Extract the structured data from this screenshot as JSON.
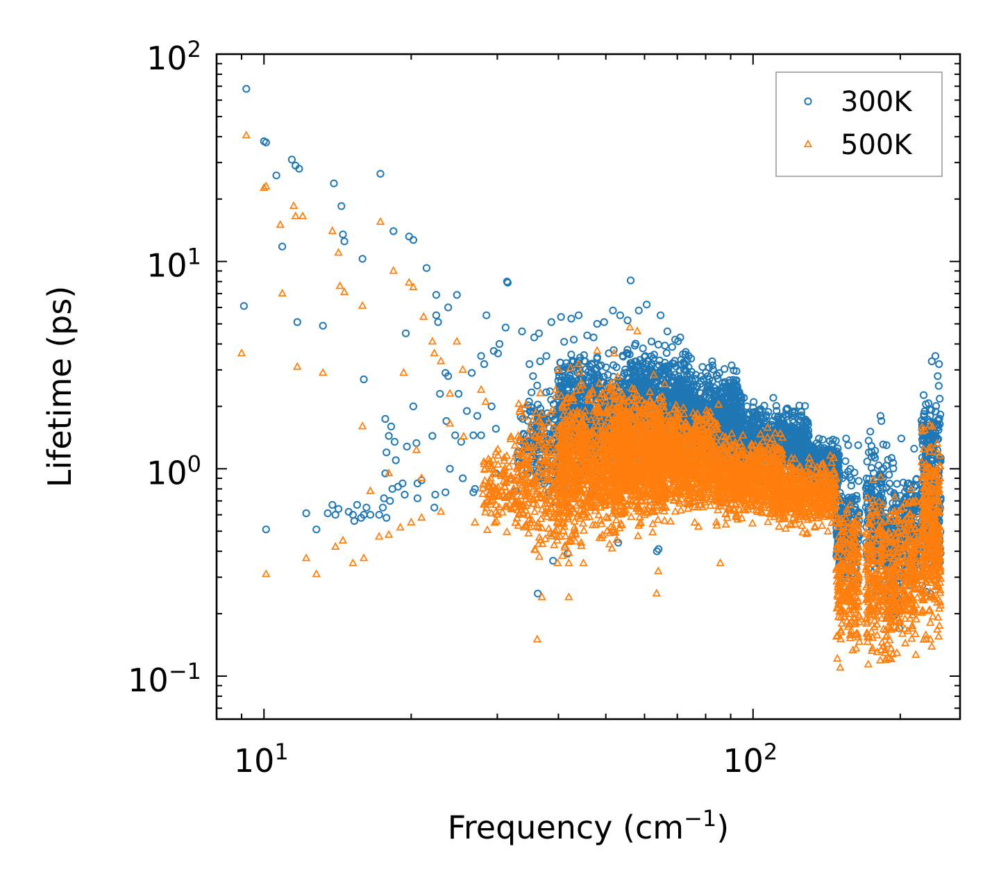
{
  "chart_data": {
    "type": "scatter",
    "scale": "log-log",
    "xlabel": "Frequency (cm",
    "xlabel_exp": "−1",
    "xlabel_close": ")",
    "ylabel": "Lifetime (ps)",
    "xlim": [
      8.0,
      265
    ],
    "ylim": [
      0.062,
      100
    ],
    "x_ticks": [
      {
        "value": 10,
        "base": "10",
        "exp": "1"
      },
      {
        "value": 100,
        "base": "10",
        "exp": "2"
      }
    ],
    "y_ticks": [
      {
        "value": 0.1,
        "base": "10",
        "exp": "−1"
      },
      {
        "value": 1,
        "base": "10",
        "exp": "0"
      },
      {
        "value": 10,
        "base": "10",
        "exp": "1"
      },
      {
        "value": 100,
        "base": "10",
        "exp": "2"
      }
    ],
    "legend": {
      "placement": "top-right"
    },
    "series": [
      {
        "name": "300K",
        "marker": "circle",
        "color": "#1f77b4",
        "points": [
          [
            9.2,
            68
          ],
          [
            10.0,
            38
          ],
          [
            10.1,
            37.5
          ],
          [
            11.6,
            29
          ],
          [
            11.8,
            28
          ],
          [
            11.4,
            31
          ],
          [
            10.6,
            26
          ],
          [
            13.9,
            23.8
          ],
          [
            17.3,
            26.5
          ],
          [
            14.4,
            18.5
          ],
          [
            14.6,
            12.5
          ],
          [
            14.5,
            13.5
          ],
          [
            10.9,
            11.8
          ],
          [
            15.9,
            10.3
          ],
          [
            18.4,
            14.0
          ],
          [
            19.8,
            13.2
          ],
          [
            20.2,
            12.7
          ],
          [
            21.5,
            9.3
          ],
          [
            22.5,
            6.9
          ],
          [
            24.8,
            6.9
          ],
          [
            23.8,
            6.0
          ],
          [
            22.5,
            5.5
          ],
          [
            22.7,
            5.1
          ],
          [
            9.1,
            6.1
          ],
          [
            11.7,
            5.1
          ],
          [
            13.2,
            4.9
          ],
          [
            19.5,
            4.5
          ],
          [
            16.0,
            2.7
          ],
          [
            22.9,
            2.3
          ],
          [
            20.2,
            2.0
          ],
          [
            23.5,
            2.9
          ],
          [
            23.8,
            2.8
          ],
          [
            25.0,
            2.3
          ],
          [
            26.6,
            2.9
          ],
          [
            28.5,
            5.5
          ],
          [
            31.4,
            8.0
          ],
          [
            31.5,
            7.9
          ],
          [
            31.2,
            4.8
          ],
          [
            30.3,
            4.0
          ],
          [
            29.5,
            3.7
          ],
          [
            30.1,
            3.6
          ],
          [
            27.8,
            3.5
          ],
          [
            28.2,
            3.2
          ],
          [
            26.0,
            1.9
          ],
          [
            27.3,
            1.8
          ],
          [
            29.2,
            2.0
          ],
          [
            17.7,
            1.74
          ],
          [
            18.2,
            1.6
          ],
          [
            18.0,
            1.44
          ],
          [
            18.5,
            1.35
          ],
          [
            20.5,
            1.33
          ],
          [
            17.8,
            1.2
          ],
          [
            18.6,
            1.1
          ],
          [
            19.6,
            1.28
          ],
          [
            22.1,
            1.44
          ],
          [
            23.6,
            1.7
          ],
          [
            24.6,
            1.45
          ],
          [
            26.8,
            1.45
          ],
          [
            27.8,
            1.45
          ],
          [
            29.8,
            1.56
          ],
          [
            25.3,
            1.35
          ],
          [
            24.0,
            1.0
          ],
          [
            25.5,
            0.9
          ],
          [
            27.0,
            0.8
          ],
          [
            26.8,
            0.77
          ],
          [
            29.8,
            0.95
          ],
          [
            32.0,
            0.9
          ],
          [
            32.7,
            0.78
          ],
          [
            21.0,
            0.88
          ],
          [
            20.6,
            0.85
          ],
          [
            19.2,
            0.85
          ],
          [
            17.7,
            0.95
          ],
          [
            18.8,
            0.82
          ],
          [
            19.4,
            0.75
          ],
          [
            20.6,
            0.72
          ],
          [
            22.4,
            0.75
          ],
          [
            23.5,
            0.77
          ],
          [
            18.1,
            0.7
          ],
          [
            17.2,
            0.6
          ],
          [
            17.8,
            0.58
          ],
          [
            17.5,
            0.65
          ],
          [
            17.6,
            0.72
          ],
          [
            16.2,
            0.65
          ],
          [
            16.5,
            0.6
          ],
          [
            15.8,
            0.58
          ],
          [
            15.2,
            0.6
          ],
          [
            14.9,
            0.62
          ],
          [
            14.2,
            0.64
          ],
          [
            15.5,
            0.67
          ],
          [
            13.8,
            0.67
          ],
          [
            13.5,
            0.61
          ],
          [
            14.0,
            0.6
          ],
          [
            12.2,
            0.61
          ],
          [
            12.8,
            0.51
          ],
          [
            10.1,
            0.51
          ],
          [
            15.3,
            0.56
          ],
          [
            16.0,
            0.6
          ],
          [
            22.3,
            0.65
          ],
          [
            18.3,
            0.8
          ],
          [
            36.3,
            0.25
          ],
          [
            39.0,
            0.36
          ],
          [
            41.8,
            0.39
          ],
          [
            53.0,
            0.44
          ],
          [
            63.6,
            0.4
          ],
          [
            64.1,
            0.41
          ],
          [
            110.0,
            2.2
          ],
          [
            97.2,
            2.0
          ],
          [
            82.5,
            3.3
          ],
          [
            74.7,
            3.4
          ],
          [
            60.6,
            6.2
          ],
          [
            56.2,
            8.1
          ],
          [
            58.4,
            5.8
          ],
          [
            55.4,
            5.2
          ],
          [
            53.5,
            5.5
          ],
          [
            51.7,
            5.8
          ],
          [
            49.6,
            5.1
          ],
          [
            48.0,
            5.0
          ],
          [
            44.0,
            5.5
          ],
          [
            42.5,
            5.3
          ],
          [
            40.5,
            5.4
          ],
          [
            38.7,
            5.1
          ],
          [
            36.5,
            4.5
          ],
          [
            35.7,
            4.3
          ],
          [
            33.7,
            4.6
          ],
          [
            34.9,
            3.2
          ],
          [
            35.5,
            2.8
          ],
          [
            36.7,
            3.3
          ],
          [
            37.8,
            3.5
          ],
          [
            39.9,
            3.0
          ],
          [
            41.1,
            4.1
          ],
          [
            43.0,
            4.2
          ],
          [
            45.8,
            4.4
          ],
          [
            47.2,
            4.3
          ],
          [
            64.7,
            5.5
          ],
          [
            66.8,
            4.6
          ],
          [
            69.3,
            4.2
          ],
          [
            71.0,
            4.3
          ],
          [
            73.8,
            3.5
          ],
          [
            78.8,
            3.1
          ],
          [
            86.6,
            2.6
          ],
          [
            89.7,
            2.3
          ],
          [
            95.8,
            2.2
          ],
          [
            100.3,
            2.1
          ],
          [
            120.6,
            1.72
          ],
          [
            128.7,
            1.7
          ],
          [
            155.0,
            1.4
          ],
          [
            156.5,
            1.3
          ],
          [
            164.0,
            1.3
          ],
          [
            172.5,
            1.2
          ],
          [
            182.2,
            1.8
          ],
          [
            183.0,
            1.7
          ],
          [
            187.5,
            1.3
          ],
          [
            201.0,
            1.4
          ],
          [
            213.5,
            1.25
          ],
          [
            221.8,
            1.6
          ],
          [
            230.2,
            1.8
          ],
          [
            232.0,
            3.3
          ],
          [
            236.0,
            3.5
          ],
          [
            240.0,
            3.2
          ],
          [
            238.5,
            2.8
          ]
        ],
        "bands": [
          {
            "x": [
              33,
              42
            ],
            "y": [
              0.55,
              3.0
            ],
            "n": 200
          },
          {
            "x": [
              40,
              62
            ],
            "y": [
              0.7,
              4.7
            ],
            "n": 900
          },
          {
            "x": [
              55,
              75
            ],
            "y": [
              0.9,
              4.5
            ],
            "n": 700
          },
          {
            "x": [
              70,
              95
            ],
            "y": [
              0.9,
              3.4
            ],
            "n": 800
          },
          {
            "x": [
              90,
              130
            ],
            "y": [
              0.8,
              2.2
            ],
            "n": 800
          },
          {
            "x": [
              125,
              150
            ],
            "y": [
              0.7,
              1.5
            ],
            "n": 400
          },
          {
            "x": [
              148,
              165
            ],
            "y": [
              0.22,
              1.2
            ],
            "n": 220
          },
          {
            "x": [
              170,
              185
            ],
            "y": [
              0.2,
              1.7
            ],
            "n": 180
          },
          {
            "x": [
              186,
              200
            ],
            "y": [
              0.12,
              1.4
            ],
            "n": 150
          },
          {
            "x": [
              202,
              217
            ],
            "y": [
              0.25,
              1.2
            ],
            "n": 150
          },
          {
            "x": [
              221,
              242
            ],
            "y": [
              0.2,
              3.3
            ],
            "n": 320
          }
        ]
      },
      {
        "name": "500K",
        "marker": "triangle",
        "color": "#ff7f0e",
        "points": [
          [
            9.2,
            40.5
          ],
          [
            10.1,
            23.0
          ],
          [
            10.0,
            22.6
          ],
          [
            11.5,
            18.5
          ],
          [
            11.6,
            16.5
          ],
          [
            12.0,
            16.5
          ],
          [
            10.8,
            15.0
          ],
          [
            13.8,
            14.0
          ],
          [
            14.2,
            11.0
          ],
          [
            14.3,
            7.6
          ],
          [
            14.6,
            7.1
          ],
          [
            10.9,
            7.0
          ],
          [
            17.3,
            15.5
          ],
          [
            18.4,
            9.0
          ],
          [
            19.8,
            7.9
          ],
          [
            20.2,
            7.5
          ],
          [
            21.2,
            5.4
          ],
          [
            15.9,
            6.1
          ],
          [
            9.0,
            3.6
          ],
          [
            11.7,
            3.1
          ],
          [
            13.2,
            2.9
          ],
          [
            19.3,
            2.9
          ],
          [
            15.9,
            1.6
          ],
          [
            22.1,
            4.1
          ],
          [
            22.3,
            3.6
          ],
          [
            23.0,
            3.3
          ],
          [
            24.8,
            4.1
          ],
          [
            25.5,
            3.0
          ],
          [
            27.8,
            2.4
          ],
          [
            28.4,
            2.1
          ],
          [
            24.0,
            2.3
          ],
          [
            24.0,
            1.65
          ],
          [
            25.6,
            1.43
          ],
          [
            20.5,
            1.23
          ],
          [
            21.0,
            0.9
          ],
          [
            18.0,
            0.95
          ],
          [
            16.5,
            0.78
          ],
          [
            14.5,
            0.45
          ],
          [
            14.0,
            0.42
          ],
          [
            12.2,
            0.37
          ],
          [
            12.8,
            0.31
          ],
          [
            10.1,
            0.31
          ],
          [
            15.2,
            0.35
          ],
          [
            16.0,
            0.37
          ],
          [
            17.2,
            0.47
          ],
          [
            18.0,
            0.48
          ],
          [
            19.0,
            0.52
          ],
          [
            20.0,
            0.55
          ],
          [
            21.0,
            0.58
          ],
          [
            23.0,
            0.62
          ],
          [
            27.0,
            0.55
          ],
          [
            30.0,
            0.6
          ],
          [
            36.2,
            0.15
          ],
          [
            37.0,
            0.24
          ],
          [
            42.0,
            0.24
          ],
          [
            42.0,
            0.35
          ],
          [
            45.0,
            0.35
          ],
          [
            63.5,
            0.25
          ],
          [
            64.0,
            0.32
          ],
          [
            85.7,
            0.35
          ],
          [
            56.0,
            4.8
          ],
          [
            58.0,
            4.6
          ],
          [
            52.0,
            3.6
          ],
          [
            48.0,
            3.7
          ],
          [
            44.0,
            3.2
          ],
          [
            40.0,
            3.0
          ]
        ],
        "bands": [
          {
            "x": [
              28,
              33
            ],
            "y": [
              0.4,
              1.6
            ],
            "n": 120
          },
          {
            "x": [
              33,
              42
            ],
            "y": [
              0.28,
              2.8
            ],
            "n": 300
          },
          {
            "x": [
              40,
              55
            ],
            "y": [
              0.35,
              3.3
            ],
            "n": 900
          },
          {
            "x": [
              52,
              66
            ],
            "y": [
              0.45,
              3.0
            ],
            "n": 900
          },
          {
            "x": [
              63,
              85
            ],
            "y": [
              0.5,
              2.3
            ],
            "n": 900
          },
          {
            "x": [
              84,
              115
            ],
            "y": [
              0.5,
              1.6
            ],
            "n": 800
          },
          {
            "x": [
              112,
              148
            ],
            "y": [
              0.45,
              1.25
            ],
            "n": 500
          },
          {
            "x": [
              148,
              165
            ],
            "y": [
              0.1,
              0.95
            ],
            "n": 260
          },
          {
            "x": [
              170,
              185
            ],
            "y": [
              0.09,
              1.0
            ],
            "n": 200
          },
          {
            "x": [
              186,
              200
            ],
            "y": [
              0.085,
              0.95
            ],
            "n": 180
          },
          {
            "x": [
              202,
              217
            ],
            "y": [
              0.11,
              0.95
            ],
            "n": 180
          },
          {
            "x": [
              221,
              242
            ],
            "y": [
              0.11,
              2.2
            ],
            "n": 380
          }
        ]
      }
    ]
  }
}
